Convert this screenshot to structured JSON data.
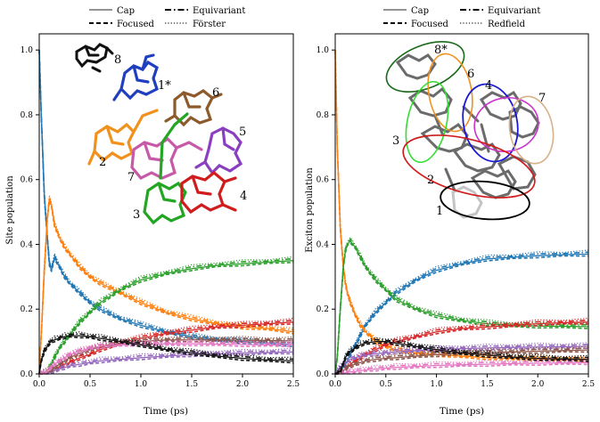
{
  "legend": [
    {
      "label": "Cap",
      "dash": "solid",
      "weight": "thin"
    },
    {
      "label": "Equivariant",
      "dash": "dashdot",
      "weight": "bold"
    },
    {
      "label": "Focused",
      "dash": "dashed",
      "weight": "bold"
    },
    {
      "label_left": "Förster",
      "label_right": "Redfield",
      "dash": "dotted",
      "weight": "thin"
    }
  ],
  "colors": {
    "1": "#1f77b4",
    "2": "#ff7f0e",
    "3": "#2ca02c",
    "4": "#d62728",
    "5": "#9467bd",
    "6": "#8c564b",
    "7": "#e377c2",
    "8": "#111111"
  },
  "chart_data": [
    {
      "type": "line",
      "xlabel": "Time (ps)",
      "ylabel": "Site population",
      "xlim": [
        0,
        2.5
      ],
      "ylim": [
        0,
        1.05
      ],
      "xticks": [
        "0.0",
        "0.5",
        "1.0",
        "1.5",
        "2.0",
        "2.5"
      ],
      "yticks": [
        "0.0",
        "0.2",
        "0.4",
        "0.6",
        "0.8",
        "1.0"
      ],
      "x": [
        0,
        0.02,
        0.05,
        0.08,
        0.1,
        0.12,
        0.15,
        0.2,
        0.25,
        0.3,
        0.4,
        0.5,
        0.6,
        0.8,
        1.0,
        1.25,
        1.5,
        1.75,
        2.0,
        2.25,
        2.5
      ],
      "series": [
        {
          "key": "1",
          "values": [
            1.0,
            0.8,
            0.55,
            0.42,
            0.34,
            0.32,
            0.36,
            0.33,
            0.3,
            0.28,
            0.25,
            0.22,
            0.2,
            0.17,
            0.15,
            0.13,
            0.115,
            0.105,
            0.1,
            0.095,
            0.09
          ]
        },
        {
          "key": "2",
          "values": [
            0.0,
            0.12,
            0.32,
            0.48,
            0.54,
            0.52,
            0.46,
            0.42,
            0.39,
            0.37,
            0.33,
            0.3,
            0.28,
            0.25,
            0.22,
            0.19,
            0.17,
            0.155,
            0.145,
            0.14,
            0.13
          ]
        },
        {
          "key": "3",
          "values": [
            0.0,
            0.0,
            0.005,
            0.01,
            0.02,
            0.03,
            0.05,
            0.08,
            0.1,
            0.12,
            0.16,
            0.19,
            0.22,
            0.26,
            0.29,
            0.31,
            0.325,
            0.335,
            0.34,
            0.345,
            0.35
          ]
        },
        {
          "key": "4",
          "values": [
            0.0,
            0.0,
            0.002,
            0.005,
            0.008,
            0.01,
            0.015,
            0.02,
            0.03,
            0.035,
            0.05,
            0.06,
            0.075,
            0.095,
            0.11,
            0.125,
            0.135,
            0.145,
            0.15,
            0.155,
            0.16
          ]
        },
        {
          "key": "5",
          "values": [
            0.0,
            0.0,
            0.0,
            0.002,
            0.004,
            0.006,
            0.01,
            0.015,
            0.02,
            0.025,
            0.03,
            0.035,
            0.04,
            0.045,
            0.05,
            0.055,
            0.06,
            0.062,
            0.064,
            0.066,
            0.068
          ]
        },
        {
          "key": "6",
          "values": [
            0.0,
            0.0,
            0.002,
            0.005,
            0.008,
            0.012,
            0.02,
            0.03,
            0.04,
            0.05,
            0.065,
            0.075,
            0.085,
            0.095,
            0.1,
            0.105,
            0.105,
            0.105,
            0.104,
            0.103,
            0.102
          ]
        },
        {
          "key": "7",
          "values": [
            0.0,
            0.0,
            0.005,
            0.01,
            0.015,
            0.02,
            0.03,
            0.04,
            0.05,
            0.06,
            0.07,
            0.08,
            0.085,
            0.09,
            0.092,
            0.093,
            0.093,
            0.092,
            0.091,
            0.09,
            0.09
          ]
        },
        {
          "key": "8",
          "values": [
            0.0,
            0.04,
            0.07,
            0.085,
            0.095,
            0.1,
            0.105,
            0.11,
            0.115,
            0.118,
            0.118,
            0.115,
            0.11,
            0.1,
            0.09,
            0.075,
            0.065,
            0.055,
            0.048,
            0.043,
            0.04
          ]
        }
      ]
    },
    {
      "type": "line",
      "xlabel": "Time (ps)",
      "ylabel": "Exciton population",
      "xlim": [
        0,
        2.5
      ],
      "ylim": [
        0,
        1.05
      ],
      "xticks": [
        "0.0",
        "0.5",
        "1.0",
        "1.5",
        "2.0",
        "2.5"
      ],
      "yticks": [
        "0.0",
        "0.2",
        "0.4",
        "0.6",
        "0.8",
        "1.0"
      ],
      "x": [
        0,
        0.02,
        0.05,
        0.08,
        0.1,
        0.12,
        0.15,
        0.2,
        0.25,
        0.3,
        0.4,
        0.5,
        0.6,
        0.8,
        1.0,
        1.25,
        1.5,
        1.75,
        2.0,
        2.25,
        2.5
      ],
      "series": [
        {
          "key": "1",
          "values": [
            0.0,
            0.0,
            0.01,
            0.02,
            0.03,
            0.04,
            0.06,
            0.09,
            0.12,
            0.15,
            0.19,
            0.22,
            0.25,
            0.29,
            0.32,
            0.34,
            0.355,
            0.36,
            0.365,
            0.368,
            0.37
          ]
        },
        {
          "key": "2",
          "values": [
            1.0,
            0.7,
            0.45,
            0.33,
            0.28,
            0.25,
            0.22,
            0.18,
            0.15,
            0.13,
            0.1,
            0.085,
            0.075,
            0.065,
            0.06,
            0.055,
            0.05,
            0.048,
            0.046,
            0.045,
            0.044
          ]
        },
        {
          "key": "3",
          "values": [
            0.0,
            0.05,
            0.2,
            0.33,
            0.38,
            0.4,
            0.41,
            0.39,
            0.36,
            0.33,
            0.29,
            0.26,
            0.23,
            0.2,
            0.18,
            0.165,
            0.155,
            0.15,
            0.148,
            0.147,
            0.146
          ]
        },
        {
          "key": "4",
          "values": [
            0.0,
            0.0,
            0.005,
            0.01,
            0.015,
            0.02,
            0.03,
            0.04,
            0.05,
            0.06,
            0.075,
            0.09,
            0.1,
            0.115,
            0.13,
            0.14,
            0.145,
            0.15,
            0.155,
            0.158,
            0.16
          ]
        },
        {
          "key": "5",
          "values": [
            0.0,
            0.01,
            0.02,
            0.03,
            0.035,
            0.04,
            0.045,
            0.05,
            0.055,
            0.058,
            0.062,
            0.065,
            0.068,
            0.072,
            0.075,
            0.078,
            0.08,
            0.082,
            0.083,
            0.084,
            0.085
          ]
        },
        {
          "key": "6",
          "values": [
            0.0,
            0.0,
            0.005,
            0.01,
            0.015,
            0.02,
            0.025,
            0.03,
            0.035,
            0.04,
            0.045,
            0.048,
            0.05,
            0.055,
            0.06,
            0.064,
            0.066,
            0.068,
            0.07,
            0.072,
            0.074
          ]
        },
        {
          "key": "7",
          "values": [
            0.0,
            0.0,
            0.0,
            0.002,
            0.003,
            0.004,
            0.006,
            0.008,
            0.01,
            0.012,
            0.015,
            0.018,
            0.02,
            0.023,
            0.026,
            0.028,
            0.03,
            0.032,
            0.033,
            0.034,
            0.035
          ]
        },
        {
          "key": "8",
          "values": [
            0.0,
            0.0,
            0.01,
            0.03,
            0.05,
            0.06,
            0.07,
            0.08,
            0.09,
            0.095,
            0.1,
            0.1,
            0.095,
            0.085,
            0.075,
            0.065,
            0.058,
            0.052,
            0.048,
            0.046,
            0.045
          ]
        }
      ]
    }
  ],
  "inset_left": {
    "labels": [
      {
        "text": "8",
        "key": "8"
      },
      {
        "text": "1*",
        "key": "1"
      },
      {
        "text": "6",
        "key": "6"
      },
      {
        "text": "5",
        "key": "5"
      },
      {
        "text": "2",
        "key": "2"
      },
      {
        "text": "7",
        "key": "7"
      },
      {
        "text": "4",
        "key": "4"
      },
      {
        "text": "3",
        "key": "3"
      }
    ]
  },
  "inset_right": {
    "labels": [
      {
        "text": "8*",
        "key": "8"
      },
      {
        "text": "6",
        "key": "6"
      },
      {
        "text": "4",
        "key": "4"
      },
      {
        "text": "7",
        "key": "7"
      },
      {
        "text": "3",
        "key": "3"
      },
      {
        "text": "2",
        "key": "2"
      },
      {
        "text": "1",
        "key": "1"
      }
    ]
  }
}
